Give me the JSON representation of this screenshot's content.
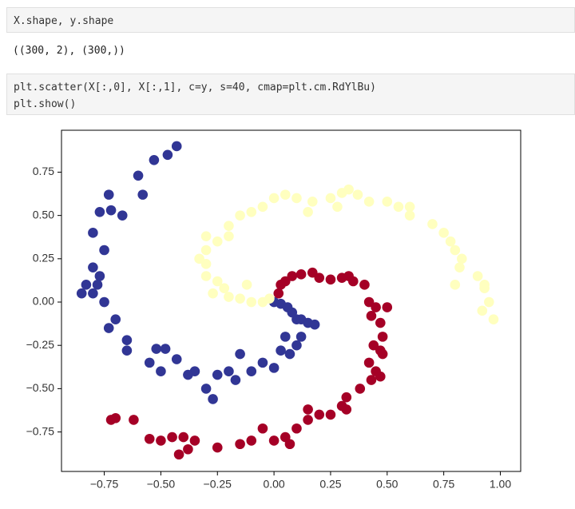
{
  "cells": [
    {
      "code": [
        "X.shape, y.shape"
      ]
    },
    {
      "output": [
        "((300, 2), (300,))"
      ]
    },
    {
      "code": [
        "plt.scatter(X[:,0], X[:,1], c=y, s=40, cmap=plt.cm.RdYlBu)",
        "plt.show()"
      ]
    }
  ],
  "chart_data": {
    "type": "scatter",
    "xlim": [
      -0.939,
      1.09
    ],
    "ylim": [
      -0.978,
      0.992
    ],
    "xticks": [
      {
        "value": -0.75,
        "label": "−0.75"
      },
      {
        "value": -0.5,
        "label": "−0.50"
      },
      {
        "value": -0.25,
        "label": "−0.25"
      },
      {
        "value": 0,
        "label": "0.00"
      },
      {
        "value": 0.25,
        "label": "0.25"
      },
      {
        "value": 0.5,
        "label": "0.50"
      },
      {
        "value": 0.75,
        "label": "0.75"
      },
      {
        "value": 1.0,
        "label": "1.00"
      }
    ],
    "yticks": [
      {
        "value": -0.75,
        "label": "−0.75"
      },
      {
        "value": -0.5,
        "label": "−0.50"
      },
      {
        "value": -0.25,
        "label": "−0.25"
      },
      {
        "value": 0,
        "label": "0.00"
      },
      {
        "value": 0.25,
        "label": "0.25"
      },
      {
        "value": 0.5,
        "label": "0.50"
      },
      {
        "value": 0.75,
        "label": "0.75"
      }
    ],
    "series": [
      {
        "color": "#313695",
        "x": [
          0.0,
          0.03,
          0.06,
          0.08,
          0.1,
          0.12,
          0.15,
          0.18,
          0.12,
          0.1,
          0.05,
          0.03,
          0.07,
          0.0,
          -0.05,
          -0.1,
          -0.15,
          -0.2,
          -0.25,
          -0.3,
          -0.35,
          -0.38,
          -0.43,
          -0.5,
          -0.55,
          -0.52,
          -0.48,
          -0.65,
          -0.65,
          -0.7,
          -0.73,
          -0.75,
          -0.78,
          -0.8,
          -0.85,
          -0.83,
          -0.77,
          -0.8,
          -0.75,
          -0.8,
          -0.77,
          -0.72,
          -0.67,
          -0.73,
          -0.58,
          -0.6,
          -0.53,
          -0.47,
          -0.43,
          -0.27,
          -0.17
        ],
        "values": [
          0.0,
          -0.01,
          -0.03,
          -0.06,
          -0.1,
          -0.1,
          -0.12,
          -0.13,
          -0.2,
          -0.25,
          -0.2,
          -0.28,
          -0.3,
          -0.38,
          -0.35,
          -0.4,
          -0.3,
          -0.4,
          -0.42,
          -0.5,
          -0.4,
          -0.42,
          -0.33,
          -0.4,
          -0.35,
          -0.27,
          -0.27,
          -0.28,
          -0.22,
          -0.1,
          -0.15,
          0.0,
          0.1,
          0.05,
          0.05,
          0.1,
          0.15,
          0.2,
          0.3,
          0.4,
          0.52,
          0.53,
          0.5,
          0.62,
          0.62,
          0.73,
          0.82,
          0.85,
          0.9,
          -0.56,
          -0.45
        ]
      },
      {
        "color": "#a50026",
        "x": [
          0.02,
          0.03,
          0.05,
          0.08,
          0.12,
          0.17,
          0.2,
          0.25,
          0.3,
          0.33,
          0.35,
          0.4,
          0.42,
          0.45,
          0.5,
          0.43,
          0.47,
          0.48,
          0.44,
          0.47,
          0.48,
          0.42,
          0.45,
          0.47,
          0.43,
          0.38,
          0.32,
          0.3,
          0.32,
          0.25,
          0.2,
          0.15,
          0.15,
          0.1,
          0.05,
          0.0,
          -0.05,
          -0.1,
          -0.15,
          -0.25,
          -0.35,
          -0.38,
          -0.4,
          -0.45,
          -0.5,
          -0.55,
          -0.62,
          -0.7,
          -0.72,
          -0.42,
          0.07
        ],
        "values": [
          0.05,
          0.1,
          0.12,
          0.15,
          0.16,
          0.17,
          0.14,
          0.13,
          0.14,
          0.15,
          0.12,
          0.1,
          0.0,
          -0.03,
          -0.03,
          -0.08,
          -0.12,
          -0.2,
          -0.25,
          -0.28,
          -0.3,
          -0.35,
          -0.4,
          -0.43,
          -0.45,
          -0.5,
          -0.55,
          -0.6,
          -0.62,
          -0.65,
          -0.65,
          -0.62,
          -0.68,
          -0.73,
          -0.78,
          -0.8,
          -0.73,
          -0.8,
          -0.82,
          -0.84,
          -0.8,
          -0.85,
          -0.78,
          -0.78,
          -0.8,
          -0.79,
          -0.68,
          -0.67,
          -0.68,
          -0.88,
          -0.82
        ]
      },
      {
        "color": "#ffffbf",
        "x": [
          -0.05,
          -0.1,
          -0.15,
          -0.2,
          -0.22,
          -0.25,
          -0.3,
          -0.3,
          -0.33,
          -0.3,
          -0.25,
          -0.2,
          -0.2,
          -0.15,
          -0.1,
          -0.05,
          0.0,
          0.05,
          0.1,
          0.17,
          0.25,
          0.3,
          0.33,
          0.37,
          0.42,
          0.5,
          0.55,
          0.6,
          0.6,
          0.7,
          0.75,
          0.78,
          0.8,
          0.83,
          0.82,
          0.9,
          0.93,
          0.95,
          0.92,
          0.97,
          0.93,
          0.8,
          -0.3,
          0.15,
          0.28,
          -0.12,
          -0.02,
          -0.27
        ],
        "values": [
          0.0,
          0.0,
          0.02,
          0.03,
          0.08,
          0.12,
          0.15,
          0.22,
          0.25,
          0.3,
          0.35,
          0.38,
          0.44,
          0.5,
          0.52,
          0.55,
          0.6,
          0.62,
          0.6,
          0.58,
          0.6,
          0.63,
          0.65,
          0.62,
          0.58,
          0.58,
          0.55,
          0.5,
          0.55,
          0.45,
          0.4,
          0.35,
          0.3,
          0.25,
          0.2,
          0.15,
          0.1,
          0.0,
          -0.05,
          -0.1,
          0.08,
          0.1,
          0.38,
          0.52,
          0.55,
          0.1,
          0.02,
          0.05
        ]
      }
    ]
  }
}
